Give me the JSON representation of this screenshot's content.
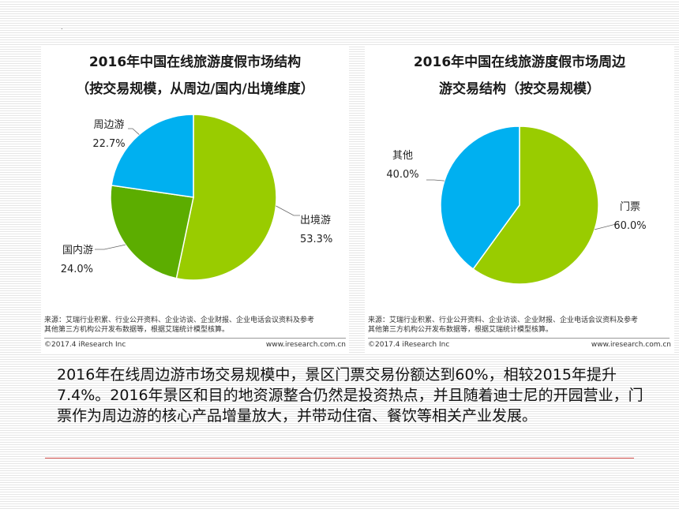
{
  "chart_data": [
    {
      "type": "pie",
      "title_line1": "2016年中国在线旅游度假市场结构",
      "title_line2": "（按交易规模，从周边/国内/出境维度）",
      "slices": [
        {
          "label": "出境游",
          "value": 53.3,
          "value_text": "53.3%",
          "color": "#99cc00"
        },
        {
          "label": "国内游",
          "value": 24.0,
          "value_text": "24.0%",
          "color": "#5cad00"
        },
        {
          "label": "周边游",
          "value": 22.7,
          "value_text": "22.7%",
          "color": "#00b0f0"
        }
      ],
      "source_line1": "来源：艾瑞行业积累、行业公开资料、企业访谈、企业财报、企业电话会议资料及参考",
      "source_line2": "其他第三方机构公开发布数据等，根据艾瑞统计模型核算。",
      "copyright": "©2017.4 iResearch Inc",
      "website": "www.iresearch.com.cn"
    },
    {
      "type": "pie",
      "title_line1": "2016年中国在线旅游度假市场周边",
      "title_line2": "游交易结构（按交易规模）",
      "slices": [
        {
          "label": "门票",
          "value": 60.0,
          "value_text": "60.0%",
          "color": "#99cc00"
        },
        {
          "label": "其他",
          "value": 40.0,
          "value_text": "40.0%",
          "color": "#00b0f0"
        }
      ],
      "source_line1": "来源：艾瑞行业积累、行业公开资料、企业访谈、企业财报、企业电话会议资料及参考",
      "source_line2": "其他第三方机构公开发布数据等，根据艾瑞统计模型核算。",
      "copyright": "©2017.4 iResearch Inc",
      "website": "www.iresearch.com.cn"
    }
  ],
  "caption": "2016年在线周边游市场交易规模中，景区门票交易份额达到60%，相较2015年提升7.4%。2016年景区和目的地资源整合仍然是投资热点，并且随着迪士尼的开园营业，门票作为周边游的核心产品增量放大，并带动住宿、餐饮等相关产业发展。",
  "decor_dot": "."
}
